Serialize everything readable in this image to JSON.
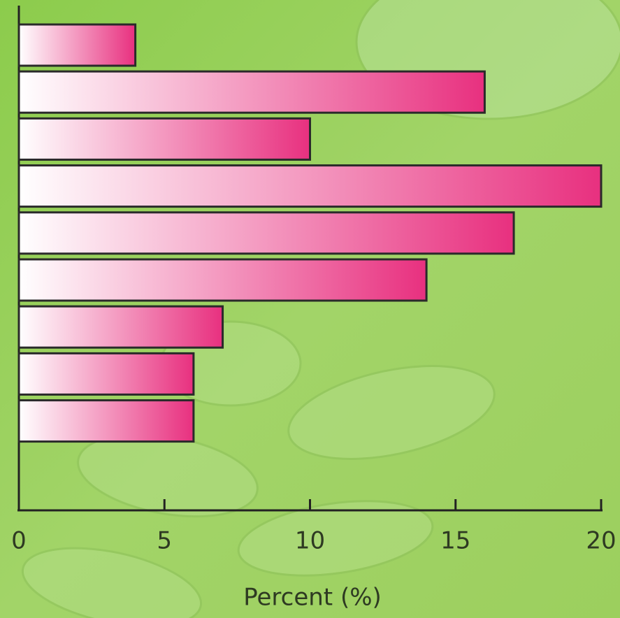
{
  "chart_data": {
    "type": "bar",
    "orientation": "horizontal",
    "categories": [
      null,
      null,
      null,
      null,
      null,
      null,
      null,
      null,
      null
    ],
    "values": [
      4,
      16,
      10,
      20,
      17,
      14,
      7,
      6,
      6
    ],
    "color": "#e8307f",
    "xlim": [
      0,
      20
    ],
    "xticks": [
      0,
      5,
      10,
      15,
      20
    ],
    "x_label": "Percent (%)"
  }
}
